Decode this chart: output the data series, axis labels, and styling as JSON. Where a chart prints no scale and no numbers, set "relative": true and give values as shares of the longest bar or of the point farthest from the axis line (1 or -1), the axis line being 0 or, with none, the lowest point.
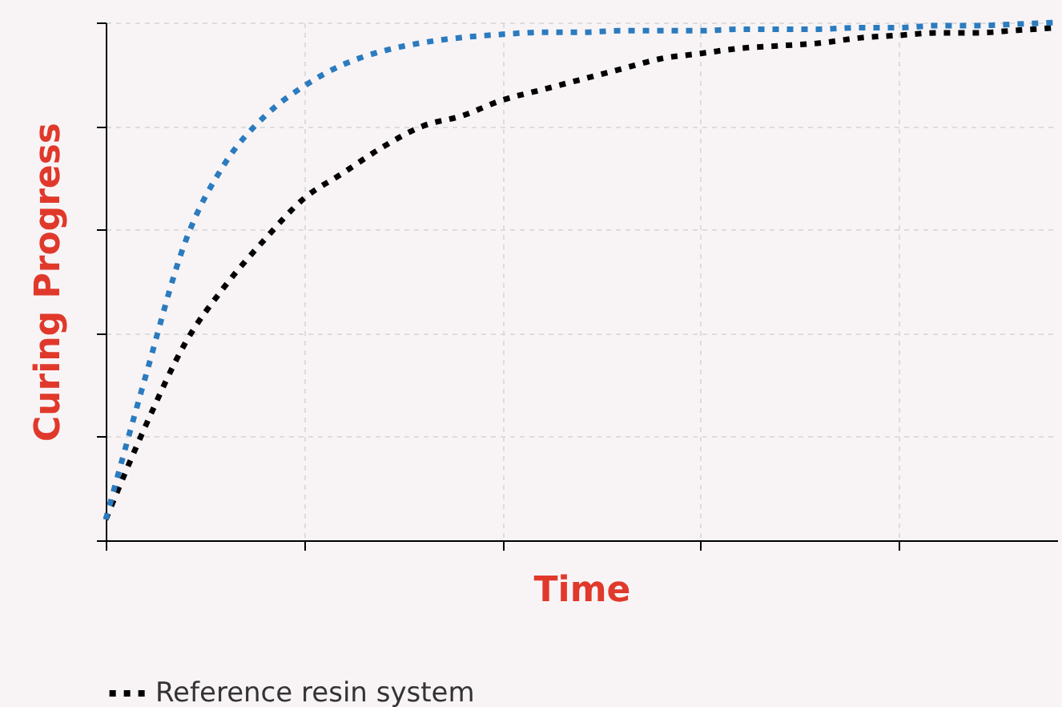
{
  "chart_data": {
    "type": "line",
    "relative": true,
    "xlabel": "Time",
    "ylabel": "Curing Progress",
    "categories": [
      null,
      null,
      null,
      null,
      null,
      null,
      null,
      null,
      null,
      null,
      null,
      null,
      null,
      null,
      null,
      null,
      null,
      null,
      null,
      null,
      null,
      null,
      null,
      null,
      null
    ],
    "series": [
      {
        "name": "Reference resin system",
        "color": "#000000",
        "values": [
          0.04,
          0.22,
          0.38,
          0.49,
          0.58,
          0.66,
          0.71,
          0.76,
          0.8,
          0.82,
          0.85,
          0.87,
          0.89,
          0.91,
          0.93,
          0.94,
          0.95,
          0.955,
          0.96,
          0.97,
          0.975,
          0.98,
          0.98,
          0.985,
          0.99
        ]
      },
      {
        "color": "#2b7bbf",
        "values": [
          0.04,
          0.315,
          0.575,
          0.727,
          0.818,
          0.877,
          0.919,
          0.945,
          0.961,
          0.971,
          0.977,
          0.981,
          0.981,
          0.984,
          0.984,
          0.984,
          0.987,
          0.987,
          0.987,
          0.99,
          0.99,
          0.994,
          0.994,
          0.997,
          1
        ]
      }
    ],
    "grid": true,
    "legend": "bottom",
    "line_style": "dotted"
  }
}
